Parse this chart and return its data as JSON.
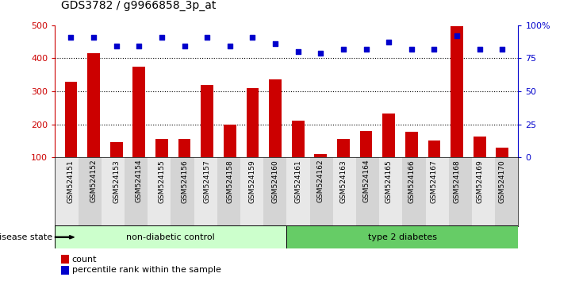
{
  "title": "GDS3782 / g9966858_3p_at",
  "samples": [
    "GSM524151",
    "GSM524152",
    "GSM524153",
    "GSM524154",
    "GSM524155",
    "GSM524156",
    "GSM524157",
    "GSM524158",
    "GSM524159",
    "GSM524160",
    "GSM524161",
    "GSM524162",
    "GSM524163",
    "GSM524164",
    "GSM524165",
    "GSM524166",
    "GSM524167",
    "GSM524168",
    "GSM524169",
    "GSM524170"
  ],
  "counts": [
    330,
    415,
    147,
    375,
    155,
    155,
    320,
    200,
    310,
    335,
    210,
    110,
    157,
    180,
    233,
    178,
    150,
    497,
    163,
    130
  ],
  "pct_dots": [
    91,
    91,
    84,
    84,
    91,
    84,
    91,
    84,
    91,
    86,
    80,
    79,
    82,
    82,
    87,
    82,
    82,
    92,
    82,
    82
  ],
  "non_diabetic_count": 10,
  "type2_count": 10,
  "ylim_left": [
    100,
    500
  ],
  "ylim_right": [
    0,
    100
  ],
  "yticks_left": [
    100,
    200,
    300,
    400,
    500
  ],
  "yticks_right": [
    0,
    25,
    50,
    75,
    100
  ],
  "ytick_labels_right": [
    "0",
    "25",
    "50",
    "75",
    "100%"
  ],
  "bar_color": "#cc0000",
  "dot_color": "#0000cc",
  "group1_label": "non-diabetic control",
  "group2_label": "type 2 diabetes",
  "group1_color": "#ccffcc",
  "group2_color": "#66cc66",
  "legend_count_label": "count",
  "legend_pct_label": "percentile rank within the sample",
  "disease_state_label": "disease state",
  "left_axis_color": "#cc0000",
  "right_axis_color": "#0000cc"
}
